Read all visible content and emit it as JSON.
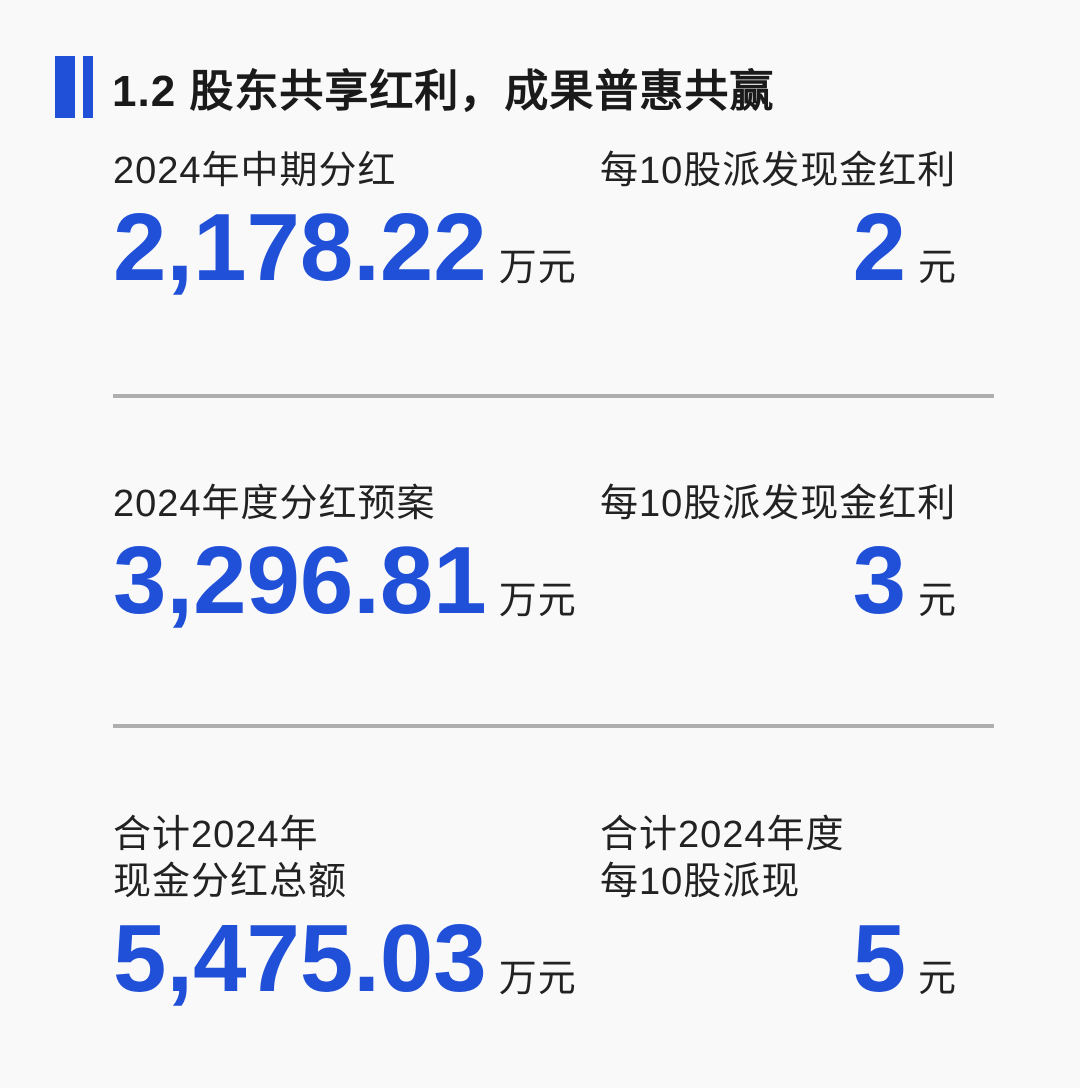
{
  "header": {
    "title": "1.2 股东共享红利，成果普惠共赢"
  },
  "colors": {
    "accent_blue": "#2150D8",
    "divider_gray": "#AFAFAF",
    "background": "#F9F9F9",
    "text_dark": "#1F1F1F"
  },
  "sections": [
    {
      "left": {
        "label_line1": "2024年中期分红",
        "value": "2,178.22",
        "unit": "万元"
      },
      "right": {
        "label_line1": "每10股派发现金红利",
        "value": "2",
        "unit": "元"
      }
    },
    {
      "left": {
        "label_line1": "2024年度分红预案",
        "value": "3,296.81",
        "unit": "万元"
      },
      "right": {
        "label_line1": "每10股派发现金红利",
        "value": "3",
        "unit": "元"
      }
    },
    {
      "left": {
        "label_line1": "合计2024年",
        "label_line2": "现金分红总额",
        "value": "5,475.03",
        "unit": "万元"
      },
      "right": {
        "label_line1": "合计2024年度",
        "label_line2": "每10股派现",
        "value": "5",
        "unit": "元"
      }
    }
  ]
}
